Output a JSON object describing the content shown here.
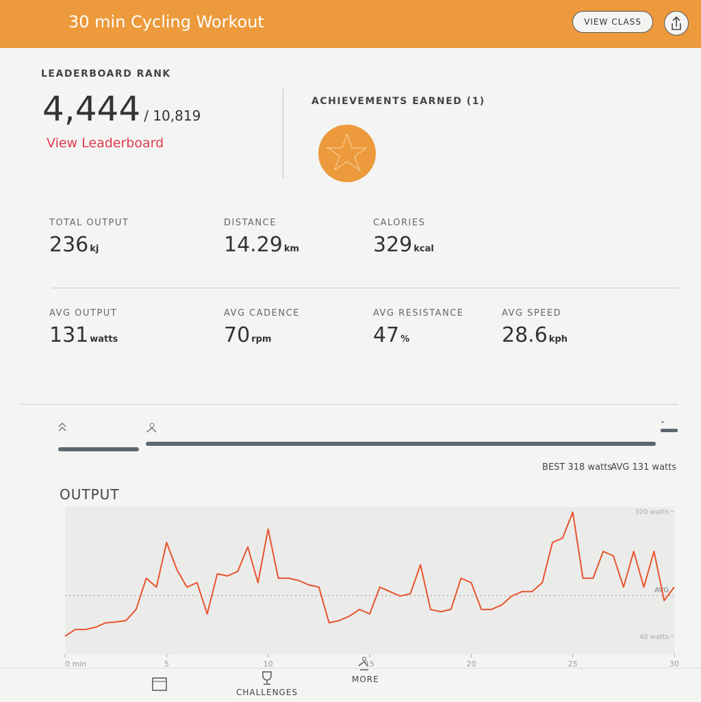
{
  "header": {
    "title": "30 min Cycling Workout",
    "button": "VIEW CLASS"
  },
  "leaderboard": {
    "label": "LEADERBOARD RANK",
    "rank": "4,444",
    "total": "/ 10,819",
    "link": "View Leaderboard"
  },
  "achievements": {
    "label": "ACHIEVEMENTS EARNED (1)"
  },
  "stats": [
    [
      {
        "label": "TOTAL OUTPUT",
        "value": 236,
        "unit": "kj"
      },
      {
        "label": "DISTANCE",
        "value": 14.29,
        "unit": "km"
      },
      {
        "label": "CALORIES",
        "value": 329,
        "unit": "kcal"
      }
    ],
    [
      {
        "label": "AVG OUTPUT",
        "value": 131,
        "unit": "watts"
      },
      {
        "label": "AVG CADENCE",
        "value": 70,
        "unit": "rpm"
      },
      {
        "label": "AVG RESISTANCE",
        "value": 47,
        "unit": "%"
      },
      {
        "label": "AVG SPEED",
        "value": 28.6,
        "unit": "kph"
      }
    ]
  ],
  "summary": {
    "best": "BEST 318 watts",
    "avg": "AVG 131 watts"
  },
  "chart_data": {
    "type": "line",
    "title": "OUTPUT",
    "x": [
      0,
      0.5,
      1,
      1.5,
      2,
      2.5,
      3,
      3.5,
      4,
      4.5,
      5,
      5.5,
      6,
      6.5,
      7,
      7.5,
      8,
      8.5,
      9,
      9.5,
      10,
      10.5,
      11,
      11.5,
      12,
      12.5,
      13,
      13.5,
      14,
      14.5,
      15,
      15.5,
      16,
      16.5,
      17,
      17.5,
      18,
      18.5,
      19,
      19.5,
      20,
      20.5,
      21,
      21.5,
      22,
      22.5,
      23,
      23.5,
      24,
      24.5,
      25,
      25.5,
      26,
      26.5,
      27,
      27.5,
      28,
      28.5,
      29,
      29.5,
      30
    ],
    "values": [
      40,
      55,
      55,
      60,
      70,
      72,
      75,
      100,
      170,
      150,
      250,
      190,
      150,
      160,
      90,
      180,
      175,
      185,
      240,
      160,
      280,
      170,
      170,
      165,
      155,
      150,
      70,
      75,
      85,
      100,
      90,
      150,
      140,
      130,
      135,
      200,
      100,
      95,
      100,
      170,
      160,
      100,
      100,
      110,
      130,
      140,
      140,
      160,
      250,
      260,
      318,
      170,
      170,
      230,
      220,
      150,
      230,
      150,
      230,
      120,
      150
    ],
    "color": "#e8532b",
    "xlim": [
      0,
      30
    ],
    "xticks": [
      {
        "value": 0,
        "label": "0 min"
      },
      5,
      10,
      15,
      20,
      25,
      30
    ],
    "ylim": [
      0,
      330
    ],
    "yticks": [
      {
        "value": 40,
        "label": "40 watts"
      },
      {
        "value": 320,
        "label": "320 watts"
      }
    ],
    "avg_line": {
      "value": 131,
      "label": "AVG"
    }
  },
  "nav": [
    "CHALLENGES",
    "MORE"
  ]
}
